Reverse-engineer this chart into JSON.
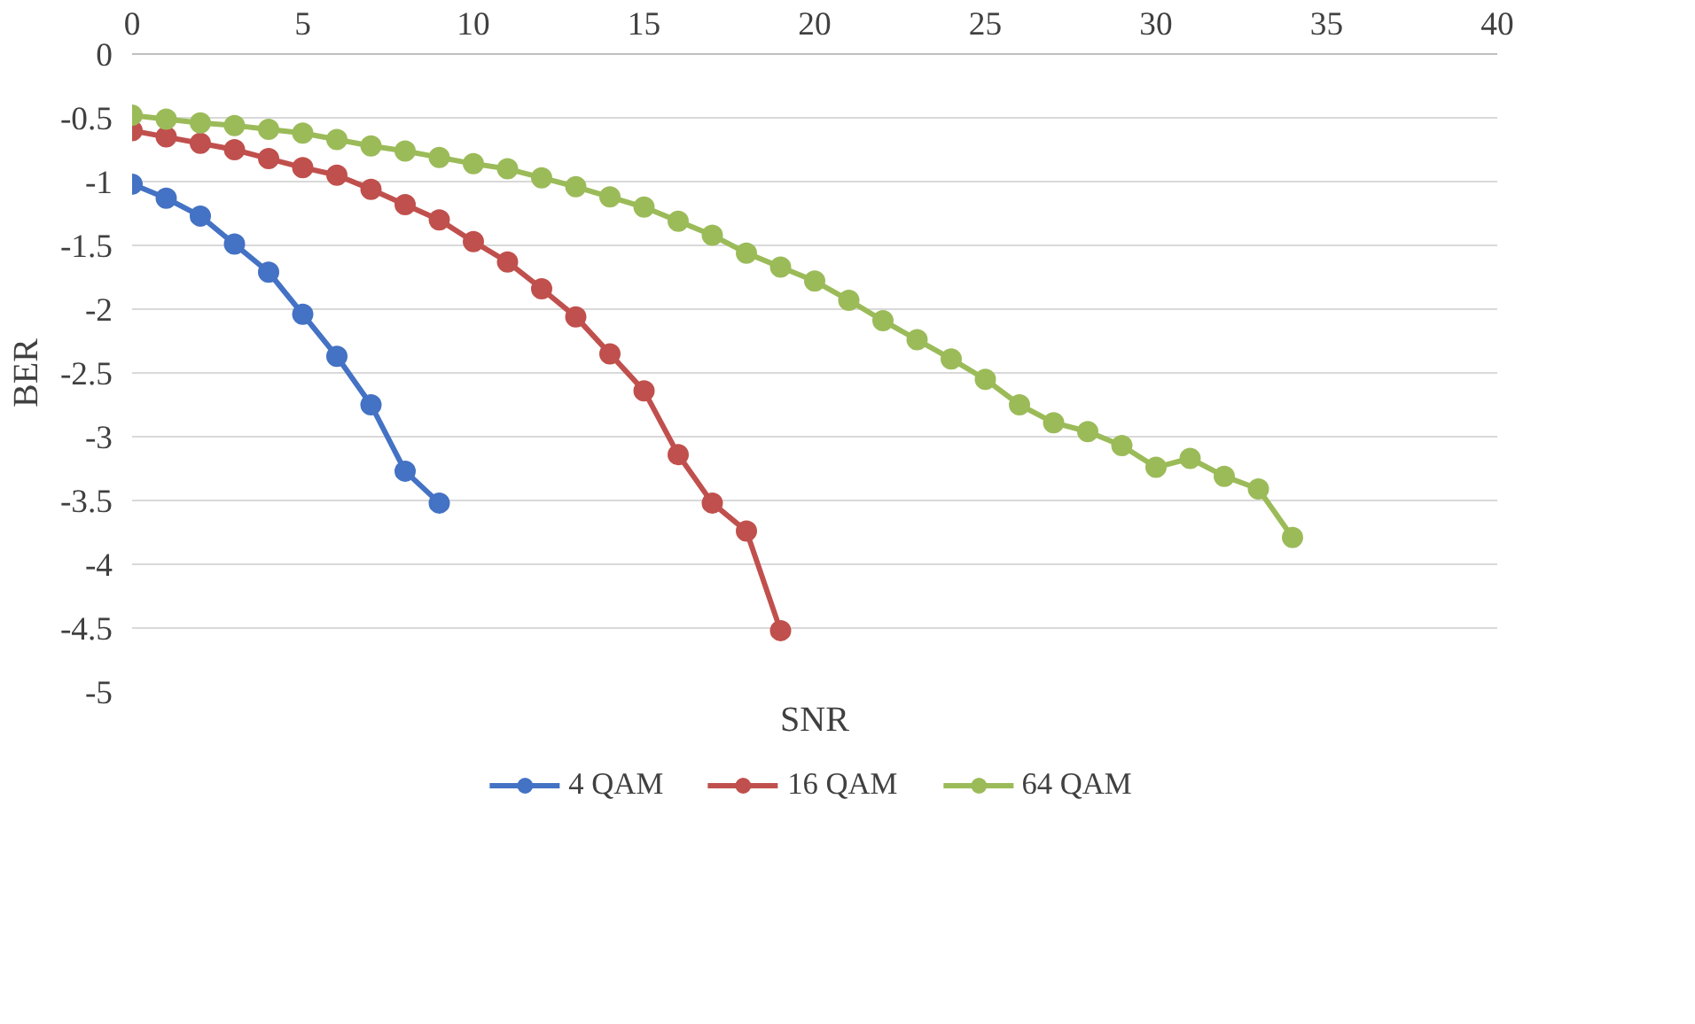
{
  "chart_data": {
    "type": "line",
    "xlabel": "SNR",
    "ylabel": "BER",
    "xlim": [
      0,
      40
    ],
    "xticks": [
      0,
      5,
      10,
      15,
      20,
      25,
      30,
      35,
      40
    ],
    "ylim": [
      -5,
      0
    ],
    "yticks": [
      -5,
      -4.5,
      -4,
      -3.5,
      -3,
      -2.5,
      -2,
      -1.5,
      -1,
      -0.5,
      0
    ],
    "grid": "y",
    "legend": "bottom",
    "marker": "circle",
    "line_style": "solid",
    "series": [
      {
        "name": "4 QAM",
        "color": "#4472c4",
        "x": [
          0,
          1,
          2,
          3,
          4,
          5,
          6,
          7,
          8,
          9
        ],
        "values": [
          -1.02,
          -1.13,
          -1.27,
          -1.49,
          -1.71,
          -2.04,
          -2.37,
          -2.75,
          -3.27,
          -3.52
        ]
      },
      {
        "name": "16 QAM",
        "color": "#c0504d",
        "x": [
          0,
          1,
          2,
          3,
          4,
          5,
          6,
          7,
          8,
          9,
          10,
          11,
          12,
          13,
          14,
          15,
          16,
          17,
          18,
          19
        ],
        "values": [
          -0.6,
          -0.65,
          -0.7,
          -0.75,
          -0.82,
          -0.89,
          -0.95,
          -1.06,
          -1.18,
          -1.3,
          -1.47,
          -1.63,
          -1.84,
          -2.06,
          -2.35,
          -2.64,
          -3.14,
          -3.52,
          -3.74,
          -4.52
        ]
      },
      {
        "name": "64 QAM",
        "color": "#9bbb59",
        "x": [
          0,
          1,
          2,
          3,
          4,
          5,
          6,
          7,
          8,
          9,
          10,
          11,
          12,
          13,
          14,
          15,
          16,
          17,
          18,
          19,
          20,
          21,
          22,
          23,
          24,
          25,
          26,
          27,
          28,
          29,
          30,
          31,
          32,
          33,
          34
        ],
        "values": [
          -0.48,
          -0.51,
          -0.54,
          -0.56,
          -0.59,
          -0.62,
          -0.67,
          -0.72,
          -0.76,
          -0.81,
          -0.86,
          -0.9,
          -0.97,
          -1.04,
          -1.12,
          -1.2,
          -1.31,
          -1.42,
          -1.56,
          -1.67,
          -1.78,
          -1.93,
          -2.09,
          -2.24,
          -2.39,
          -2.55,
          -2.75,
          -2.89,
          -2.96,
          -3.07,
          -3.24,
          -3.17,
          -3.31,
          -3.41,
          -3.79
        ]
      }
    ]
  }
}
